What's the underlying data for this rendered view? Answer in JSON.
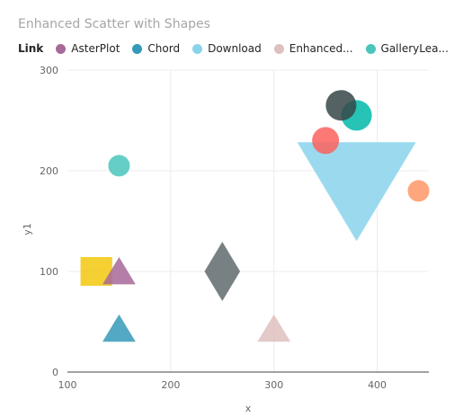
{
  "chart_data": {
    "type": "scatter",
    "title": "Enhanced Scatter with Shapes",
    "xlabel": "x",
    "ylabel": "y1",
    "xlim": [
      100,
      450
    ],
    "ylim": [
      0,
      300
    ],
    "x_ticks": [
      "100",
      "200",
      "300",
      "400"
    ],
    "y_ticks": [
      "0",
      "100",
      "200",
      "300"
    ],
    "grid": true,
    "legend": {
      "title": "Link",
      "position": "top-left",
      "entries": [
        {
          "name": "AsterPlot",
          "color": "#a66999"
        },
        {
          "name": "Chord",
          "color": "#3599b8"
        },
        {
          "name": "Download",
          "color": "#8ad4eb"
        },
        {
          "name": "Enhanced...",
          "color": "#dfbfbf"
        },
        {
          "name": "GalleryLea...",
          "color": "#4ac5bb"
        }
      ]
    },
    "points": [
      {
        "x": 128,
        "y": 100,
        "shape": "square",
        "size": 16,
        "color": "#f2c80f"
      },
      {
        "x": 150,
        "y": 100,
        "shape": "triangle-up",
        "size": 16,
        "color": "#a66999"
      },
      {
        "x": 150,
        "y": 43,
        "shape": "triangle-up",
        "size": 16,
        "color": "#3599b8"
      },
      {
        "x": 150,
        "y": 205,
        "shape": "circle",
        "size": 12,
        "color": "#4ac5bb"
      },
      {
        "x": 250,
        "y": 100,
        "shape": "diamond",
        "size": 33,
        "color": "#5f6b6d"
      },
      {
        "x": 300,
        "y": 43,
        "shape": "triangle-up",
        "size": 16,
        "color": "#dfbfbf"
      },
      {
        "x": 380,
        "y": 195,
        "shape": "triangle-down",
        "size": 55,
        "color": "#8ad4eb"
      },
      {
        "x": 350,
        "y": 230,
        "shape": "circle",
        "size": 15,
        "color": "#fd625e"
      },
      {
        "x": 380,
        "y": 255,
        "shape": "circle",
        "size": 17,
        "color": "#01b8aa"
      },
      {
        "x": 365,
        "y": 265,
        "shape": "circle",
        "size": 17,
        "color": "#374649"
      },
      {
        "x": 440,
        "y": 180,
        "shape": "circle",
        "size": 12,
        "color": "#fe9666"
      }
    ]
  }
}
